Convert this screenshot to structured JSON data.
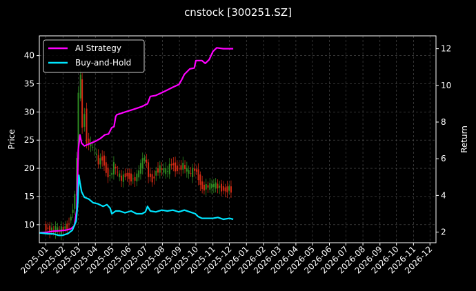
{
  "chart_data": {
    "type": "line",
    "title": "cnstock [300251.SZ]",
    "xlabel": "",
    "ylabel": "Price",
    "ylabel_right": "Return",
    "ylim": [
      6.8,
      43.5
    ],
    "ylim_right": [
      1.42,
      12.7
    ],
    "yticks": [
      10,
      15,
      20,
      25,
      30,
      35,
      40
    ],
    "yticks_right": [
      2,
      4,
      6,
      8,
      10,
      12
    ],
    "x_start": "2024-12-20",
    "x_end": "2026-12-12",
    "xticks": [
      "2025-01",
      "2025-02",
      "2025-03",
      "2025-04",
      "2025-05",
      "2025-06",
      "2025-07",
      "2025-08",
      "2025-09",
      "2025-10",
      "2025-11",
      "2025-12",
      "2026-01",
      "2026-02",
      "2026-03",
      "2026-04",
      "2026-05",
      "2026-06",
      "2026-07",
      "2026-08",
      "2026-09",
      "2026-10",
      "2026-11",
      "2026-12"
    ],
    "grid": true,
    "legend_position": "top-left",
    "background": "#000000",
    "candles": {
      "up_color": "#2e8b22",
      "down_color": "#d42a14",
      "points": [
        {
          "date": "2025-01-01",
          "close": 9.6
        },
        {
          "date": "2025-01-08",
          "close": 9.3
        },
        {
          "date": "2025-01-15",
          "close": 9.0
        },
        {
          "date": "2025-01-22",
          "close": 9.2
        },
        {
          "date": "2025-01-29",
          "close": 8.9
        },
        {
          "date": "2025-02-05",
          "close": 9.4
        },
        {
          "date": "2025-02-12",
          "close": 9.8
        },
        {
          "date": "2025-02-19",
          "close": 11.5
        },
        {
          "date": "2025-02-26",
          "close": 15.0
        },
        {
          "date": "2025-03-01",
          "close": 22.0
        },
        {
          "date": "2025-03-05",
          "close": 33.0
        },
        {
          "date": "2025-03-08",
          "close": 36.0
        },
        {
          "date": "2025-03-12",
          "close": 27.0
        },
        {
          "date": "2025-03-16",
          "close": 30.0
        },
        {
          "date": "2025-03-20",
          "close": 25.0
        },
        {
          "date": "2025-03-27",
          "close": 24.0
        },
        {
          "date": "2025-04-03",
          "close": 23.0
        },
        {
          "date": "2025-04-10",
          "close": 21.0
        },
        {
          "date": "2025-04-17",
          "close": 22.0
        },
        {
          "date": "2025-04-24",
          "close": 19.5
        },
        {
          "date": "2025-05-01",
          "close": 18.5
        },
        {
          "date": "2025-05-08",
          "close": 20.5
        },
        {
          "date": "2025-05-15",
          "close": 19.0
        },
        {
          "date": "2025-05-22",
          "close": 18.0
        },
        {
          "date": "2025-05-29",
          "close": 19.0
        },
        {
          "date": "2025-06-05",
          "close": 18.5
        },
        {
          "date": "2025-06-12",
          "close": 18.0
        },
        {
          "date": "2025-06-19",
          "close": 18.5
        },
        {
          "date": "2025-06-26",
          "close": 20.5
        },
        {
          "date": "2025-07-03",
          "close": 22.0
        },
        {
          "date": "2025-07-10",
          "close": 19.0
        },
        {
          "date": "2025-07-17",
          "close": 18.0
        },
        {
          "date": "2025-07-24",
          "close": 19.5
        },
        {
          "date": "2025-07-31",
          "close": 20.0
        },
        {
          "date": "2025-08-07",
          "close": 19.5
        },
        {
          "date": "2025-08-14",
          "close": 19.5
        },
        {
          "date": "2025-08-21",
          "close": 21.0
        },
        {
          "date": "2025-08-28",
          "close": 20.0
        },
        {
          "date": "2025-09-04",
          "close": 20.0
        },
        {
          "date": "2025-09-11",
          "close": 20.5
        },
        {
          "date": "2025-09-18",
          "close": 19.5
        },
        {
          "date": "2025-09-25",
          "close": 19.0
        },
        {
          "date": "2025-10-02",
          "close": 20.0
        },
        {
          "date": "2025-10-09",
          "close": 18.5
        },
        {
          "date": "2025-10-16",
          "close": 16.5
        },
        {
          "date": "2025-10-23",
          "close": 16.8
        },
        {
          "date": "2025-10-30",
          "close": 16.8
        },
        {
          "date": "2025-11-06",
          "close": 17.0
        },
        {
          "date": "2025-11-13",
          "close": 16.8
        },
        {
          "date": "2025-11-20",
          "close": 16.5
        },
        {
          "date": "2025-11-27",
          "close": 16.2
        },
        {
          "date": "2025-12-04",
          "close": 16.5
        },
        {
          "date": "2025-12-08",
          "close": 16.0
        }
      ]
    },
    "series": [
      {
        "name": "AI Strategy",
        "color": "#ff00ff",
        "axis": "right",
        "points": [
          [
            "2024-12-20",
            1.96
          ],
          [
            "2025-01-05",
            2.0
          ],
          [
            "2025-01-15",
            2.05
          ],
          [
            "2025-01-25",
            2.07
          ],
          [
            "2025-02-05",
            2.1
          ],
          [
            "2025-02-15",
            2.17
          ],
          [
            "2025-02-22",
            2.35
          ],
          [
            "2025-02-26",
            3.2
          ],
          [
            "2025-03-01",
            6.5
          ],
          [
            "2025-03-04",
            7.3
          ],
          [
            "2025-03-07",
            6.85
          ],
          [
            "2025-03-12",
            6.7
          ],
          [
            "2025-03-20",
            6.8
          ],
          [
            "2025-03-28",
            6.9
          ],
          [
            "2025-04-01",
            6.95
          ],
          [
            "2025-04-10",
            7.1
          ],
          [
            "2025-04-18",
            7.3
          ],
          [
            "2025-04-25",
            7.35
          ],
          [
            "2025-05-01",
            7.7
          ],
          [
            "2025-05-05",
            7.75
          ],
          [
            "2025-05-08",
            8.3
          ],
          [
            "2025-05-10",
            8.4
          ],
          [
            "2025-05-25",
            8.55
          ],
          [
            "2025-06-10",
            8.7
          ],
          [
            "2025-06-25",
            8.85
          ],
          [
            "2025-07-05",
            9.0
          ],
          [
            "2025-07-10",
            9.4
          ],
          [
            "2025-07-20",
            9.45
          ],
          [
            "2025-07-31",
            9.6
          ],
          [
            "2025-08-10",
            9.75
          ],
          [
            "2025-08-20",
            9.9
          ],
          [
            "2025-08-31",
            10.05
          ],
          [
            "2025-09-05",
            10.3
          ],
          [
            "2025-09-10",
            10.6
          ],
          [
            "2025-09-20",
            10.9
          ],
          [
            "2025-09-28",
            10.95
          ],
          [
            "2025-10-01",
            11.35
          ],
          [
            "2025-10-12",
            11.35
          ],
          [
            "2025-10-18",
            11.2
          ],
          [
            "2025-10-25",
            11.4
          ],
          [
            "2025-11-01",
            11.85
          ],
          [
            "2025-11-08",
            12.05
          ],
          [
            "2025-11-20",
            12.0
          ],
          [
            "2025-12-01",
            12.0
          ],
          [
            "2025-12-08",
            12.0
          ]
        ]
      },
      {
        "name": "Buy-and-Hold",
        "color": "#00e5ff",
        "axis": "right",
        "points": [
          [
            "2024-12-20",
            1.96
          ],
          [
            "2025-01-05",
            1.91
          ],
          [
            "2025-01-15",
            1.9
          ],
          [
            "2025-01-25",
            1.82
          ],
          [
            "2025-02-01",
            1.83
          ],
          [
            "2025-02-10",
            1.92
          ],
          [
            "2025-02-18",
            2.1
          ],
          [
            "2025-02-25",
            2.6
          ],
          [
            "2025-02-28",
            3.6
          ],
          [
            "2025-03-02",
            5.1
          ],
          [
            "2025-03-04",
            4.7
          ],
          [
            "2025-03-07",
            4.2
          ],
          [
            "2025-03-12",
            3.9
          ],
          [
            "2025-03-20",
            3.8
          ],
          [
            "2025-03-28",
            3.6
          ],
          [
            "2025-04-05",
            3.55
          ],
          [
            "2025-04-15",
            3.4
          ],
          [
            "2025-04-22",
            3.5
          ],
          [
            "2025-04-28",
            3.3
          ],
          [
            "2025-05-01",
            3.0
          ],
          [
            "2025-05-08",
            3.15
          ],
          [
            "2025-05-15",
            3.15
          ],
          [
            "2025-05-25",
            3.05
          ],
          [
            "2025-06-05",
            3.15
          ],
          [
            "2025-06-15",
            3.0
          ],
          [
            "2025-06-25",
            3.0
          ],
          [
            "2025-07-01",
            3.1
          ],
          [
            "2025-07-05",
            3.4
          ],
          [
            "2025-07-10",
            3.15
          ],
          [
            "2025-07-20",
            3.1
          ],
          [
            "2025-07-31",
            3.2
          ],
          [
            "2025-08-10",
            3.15
          ],
          [
            "2025-08-20",
            3.2
          ],
          [
            "2025-08-31",
            3.1
          ],
          [
            "2025-09-10",
            3.2
          ],
          [
            "2025-09-20",
            3.1
          ],
          [
            "2025-09-30",
            3.0
          ],
          [
            "2025-10-05",
            2.85
          ],
          [
            "2025-10-12",
            2.75
          ],
          [
            "2025-10-20",
            2.75
          ],
          [
            "2025-11-01",
            2.75
          ],
          [
            "2025-11-10",
            2.8
          ],
          [
            "2025-11-20",
            2.7
          ],
          [
            "2025-12-01",
            2.75
          ],
          [
            "2025-12-08",
            2.7
          ]
        ]
      }
    ]
  }
}
